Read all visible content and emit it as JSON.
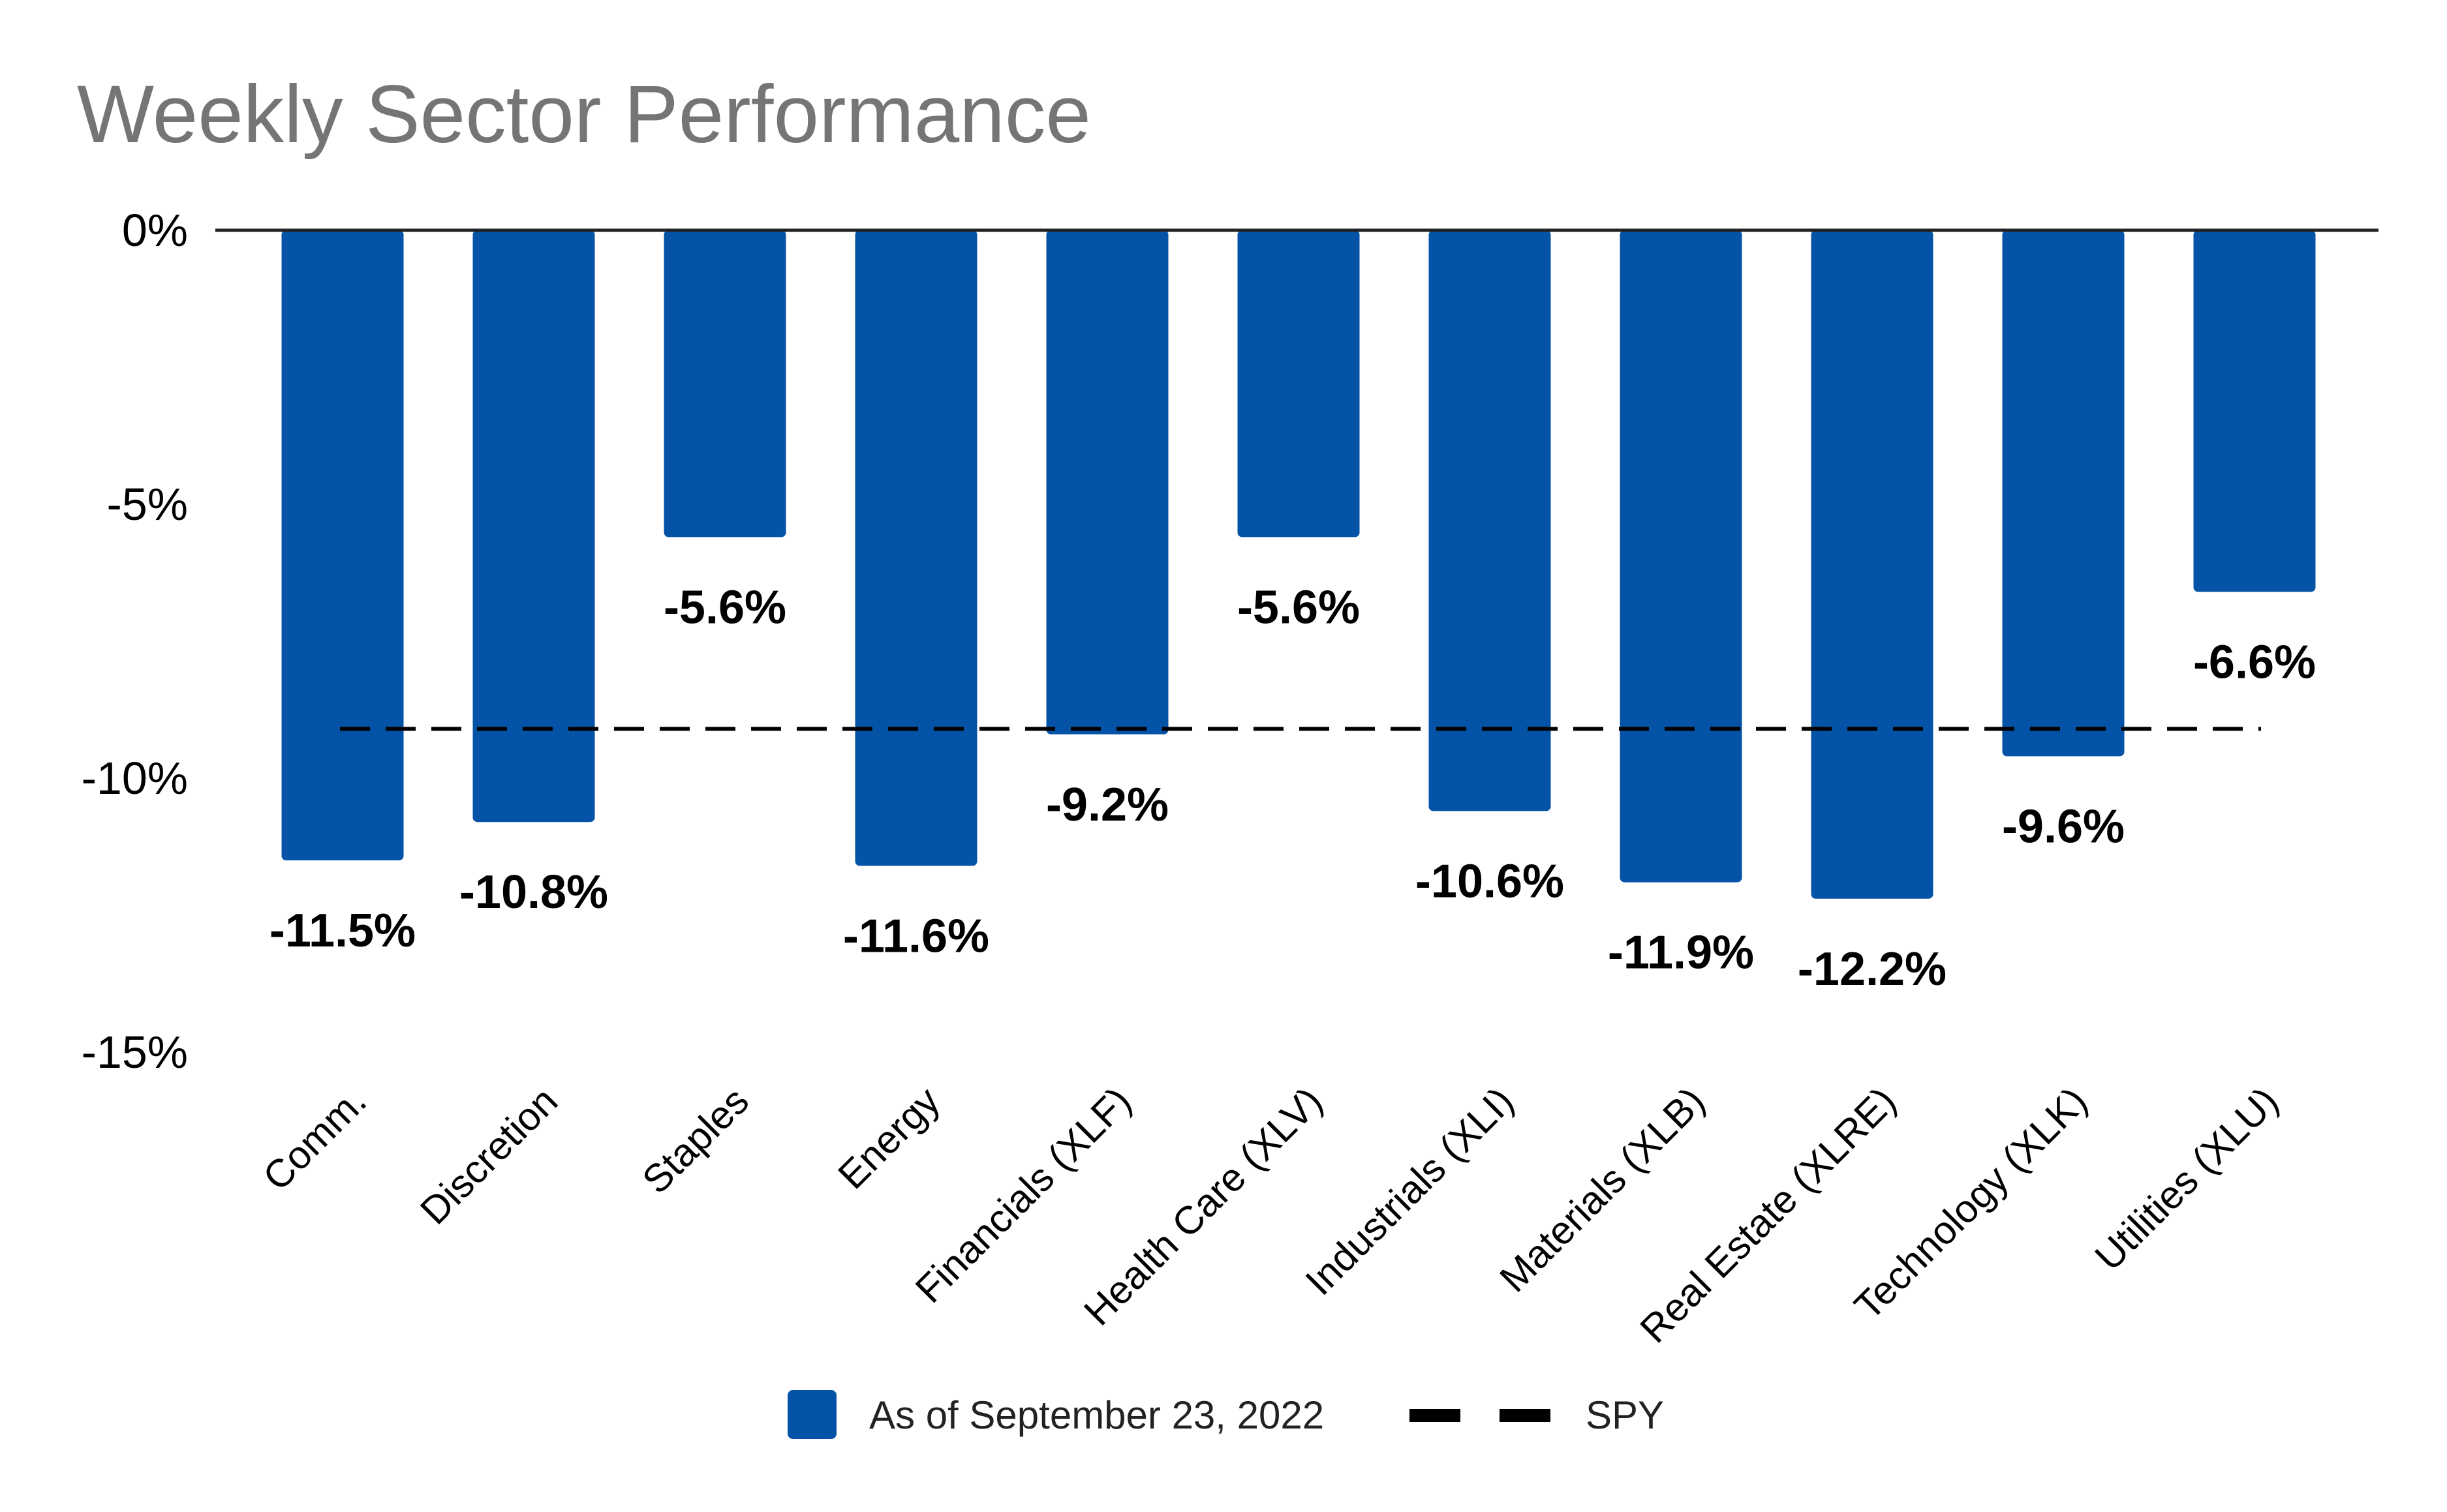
{
  "chart_data": {
    "type": "bar",
    "title": "Weekly Sector Performance",
    "xlabel": "",
    "ylabel": "",
    "ylim": [
      -15,
      0
    ],
    "y_ticks": [
      0,
      -5,
      -10,
      -15
    ],
    "y_tick_labels": [
      "0%",
      "-5%",
      "-10%",
      "-15%"
    ],
    "grid": false,
    "legend_position": "bottom",
    "categories": [
      "Comm.",
      "Discretion",
      "Staples",
      "Energy",
      "Financials (XLF)",
      "Health Care (XLV)",
      "Industrials (XLI)",
      "Materials (XLB)",
      "Real Estate (XLRE)",
      "Technology (XLK)",
      "Utilities (XLU)"
    ],
    "series": [
      {
        "name": "As of September 23, 2022",
        "type": "bar",
        "color": "#0453A6",
        "values": [
          -11.5,
          -10.8,
          -5.6,
          -11.6,
          -9.2,
          -5.6,
          -10.6,
          -11.9,
          -12.2,
          -9.6,
          -6.6
        ],
        "data_labels": [
          "-11.5%",
          "-10.8%",
          "-5.6%",
          "-11.6%",
          "-9.2%",
          "-5.6%",
          "-10.6%",
          "-11.9%",
          "-12.2%",
          "-9.6%",
          "-6.6%"
        ]
      },
      {
        "name": "SPY",
        "type": "line",
        "style": "dashed",
        "color": "#000000",
        "value": -9.1
      }
    ]
  }
}
